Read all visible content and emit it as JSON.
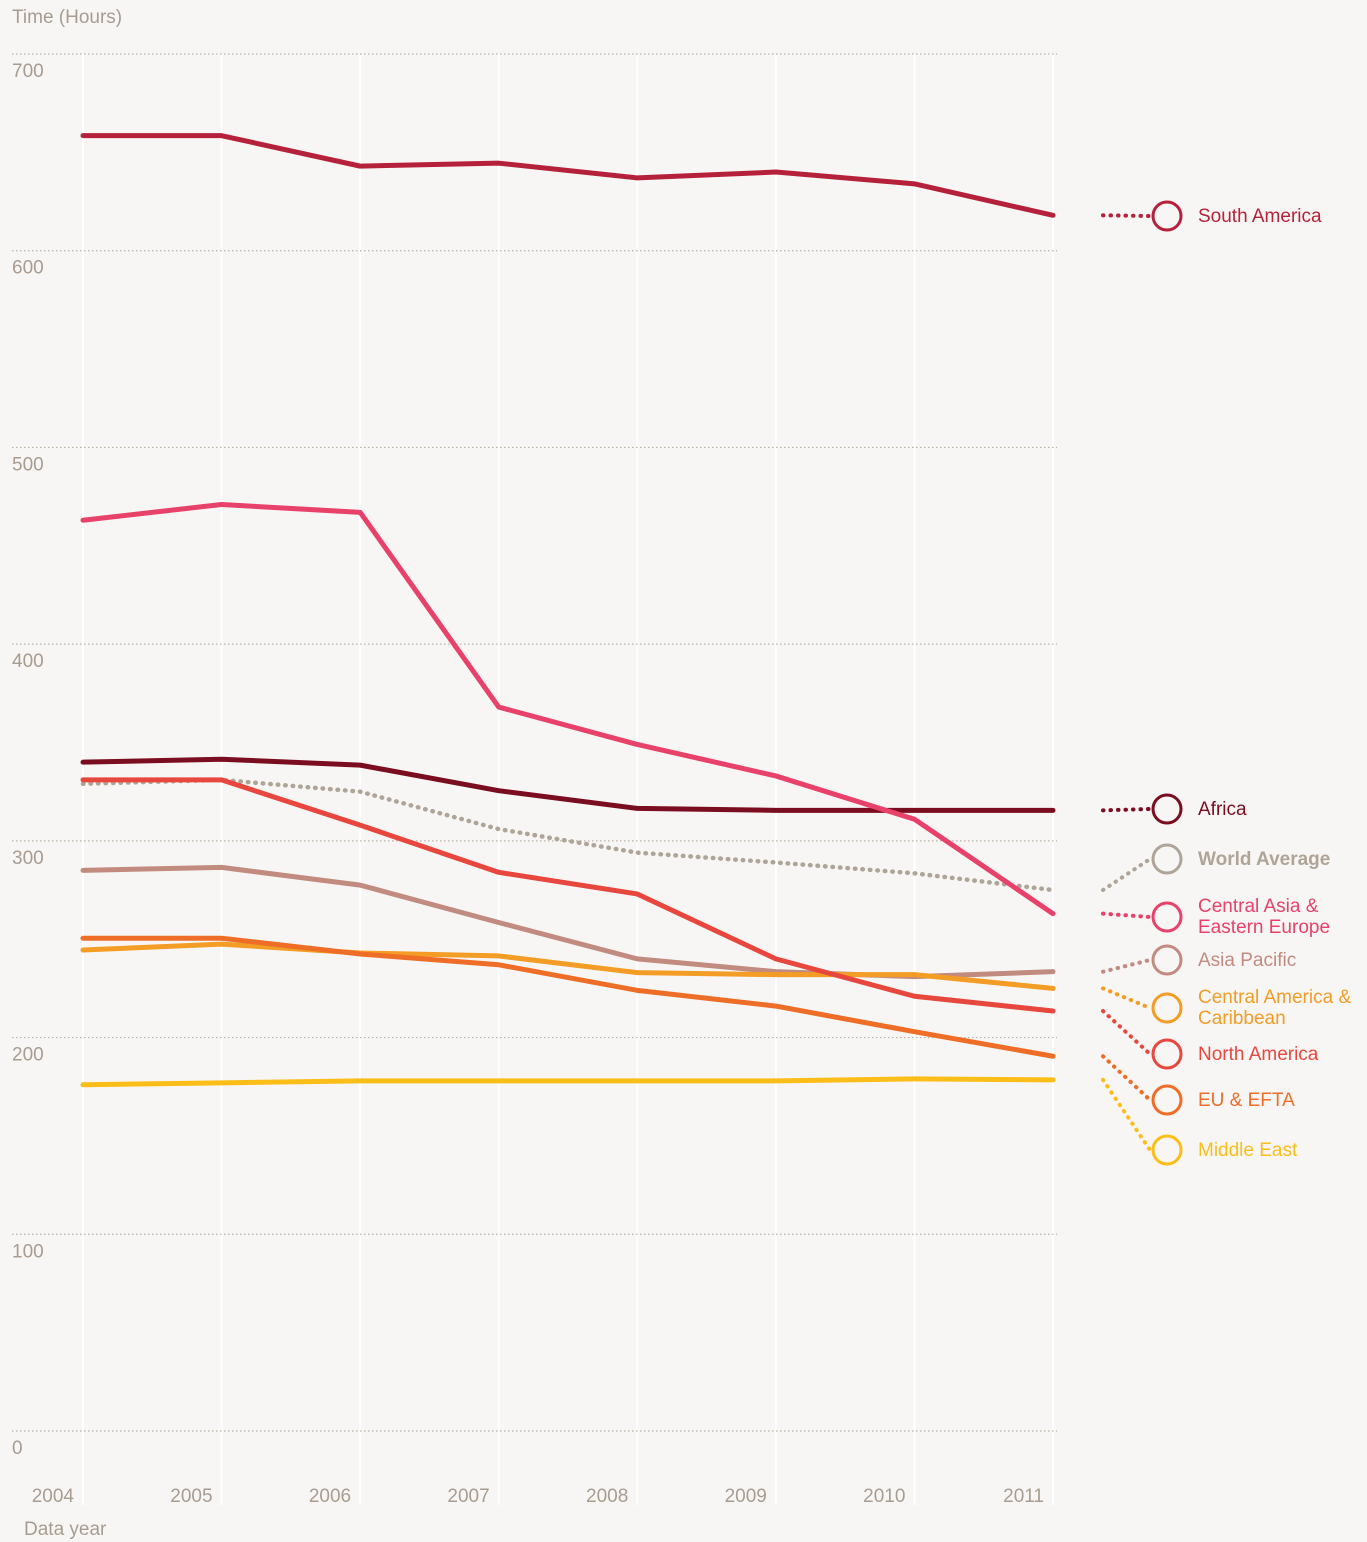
{
  "chart_data": {
    "type": "line",
    "y_label": "Time (Hours)",
    "x_label": "Data year",
    "categories": [
      "2004",
      "2005",
      "2006",
      "2007",
      "2008",
      "2009",
      "2010",
      "2011"
    ],
    "ylim": [
      0,
      700
    ],
    "yticks": [
      0,
      100,
      200,
      300,
      400,
      500,
      600,
      700
    ],
    "grid": true,
    "series": [
      {
        "name": "South America",
        "color": "#b5213a",
        "values": [
          658.5,
          658.5,
          643,
          644.5,
          637,
          640,
          634,
          618
        ]
      },
      {
        "name": "Africa",
        "color": "#7a0d20",
        "values": [
          340,
          341.5,
          338.5,
          325.5,
          316.5,
          315.5,
          315.5,
          315.5
        ]
      },
      {
        "name": "World Average",
        "color": "#aea497",
        "line_style": "dotted",
        "bold": true,
        "values": [
          329,
          331,
          325,
          306,
          294,
          289,
          283.5,
          275
        ]
      },
      {
        "name": "Central Asia & Eastern Europe",
        "color": "#e8416a",
        "values": [
          463,
          471,
          467,
          368,
          349,
          333,
          311,
          263
        ]
      },
      {
        "name": "Asia Pacific",
        "color": "#c28b80",
        "values": [
          285,
          286.5,
          277.5,
          258.5,
          240,
          233.5,
          231,
          233.5
        ]
      },
      {
        "name": "Central America & Caribbean",
        "color": "#f39c26",
        "values": [
          244.5,
          247.5,
          243,
          241.5,
          233,
          232,
          232,
          225
        ]
      },
      {
        "name": "North America",
        "color": "#e8473e",
        "values": [
          331,
          331,
          308,
          284,
          273,
          240,
          221,
          213.5
        ]
      },
      {
        "name": "EU & EFTA",
        "color": "#ee6d27",
        "values": [
          250.5,
          250.5,
          242.5,
          237,
          224,
          216,
          203,
          190.5
        ]
      },
      {
        "name": "Middle East",
        "color": "#fbbd18",
        "values": [
          176,
          177,
          178,
          178,
          178,
          178,
          179,
          178.5
        ]
      }
    ]
  }
}
